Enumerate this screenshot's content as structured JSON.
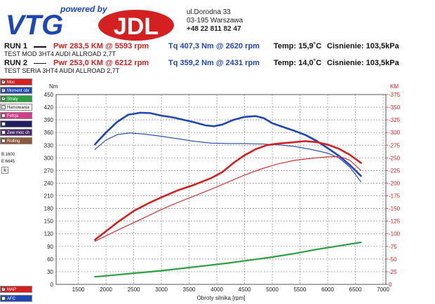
{
  "header": {
    "logo_text_top": "powered by",
    "logo_text_left": "VTG",
    "logo_text_right": "JDL",
    "address_line1": "ul.Dorodna 33",
    "address_line2": "03-195 Warszawa",
    "address_phone": "+48 22 811 82 47"
  },
  "runs": [
    {
      "label": "RUN 1",
      "pwr": "Pwr  283,5 KM @ 5593 rpm",
      "tq": "Tq 407,3 Nm @ 2620 rpm",
      "temp": "Temp: 15,9˚C",
      "pressure": "Cisnienie: 103,5kPa",
      "description": "TEST MOD 3HT4 AUDI ALLROAD 2,7T"
    },
    {
      "label": "RUN 2",
      "pwr": "Pwr  253,0 KM @ 6212 rpm",
      "tq": "Tq 359,2 Nm @ 2431 rpm",
      "temp": "Temp: 14,0˚C",
      "pressure": "Cisnienie: 103,5kPa",
      "description": "TEST SERIA 3HT4 AUDI ALLROAD 2,7T"
    }
  ],
  "sidebar": {
    "items": [
      {
        "label": "Moc",
        "color": "#d42020",
        "checked": true
      },
      {
        "label": "Moment obr",
        "color": "#1e46b4",
        "checked": true
      },
      {
        "label": "Straty",
        "color": "#2aa040",
        "checked": true
      },
      {
        "label": "Hamowania",
        "color": "#ffffff",
        "checked": false
      },
      {
        "label": "Fefcja",
        "color": "#d83a8a",
        "checked": false
      },
      {
        "label": "",
        "color": "#202060",
        "checked": false
      },
      {
        "label": "Zew moc ch",
        "color": "#4a2a6a",
        "checked": false
      },
      {
        "label": "Rolling",
        "color": "#8a5a3a",
        "checked": false
      }
    ],
    "value1": "B:1600",
    "value2": "E:6645",
    "button_k": "k",
    "bottom_items": [
      {
        "label": "MAP",
        "color": "#d42020",
        "checked": true
      },
      {
        "label": "AFC",
        "color": "#1e46b4",
        "checked": false
      }
    ]
  },
  "chart_data": {
    "type": "line",
    "xlabel": "Obroty silnika [rpm]",
    "ylabel_left": "Nm",
    "ylabel_right": "KM",
    "xlim": [
      1100,
      7050
    ],
    "xticks": [
      1500,
      2000,
      2500,
      3000,
      3500,
      4000,
      4500,
      5000,
      5500,
      6000,
      6500,
      7000
    ],
    "ylim_left": [
      0,
      450
    ],
    "yticks_left": [
      0,
      30,
      60,
      90,
      120,
      150,
      180,
      210,
      240,
      270,
      300,
      330,
      360,
      390,
      420,
      450
    ],
    "ylim_right": [
      0,
      375
    ],
    "yticks_right": [
      0,
      25,
      50,
      75,
      100,
      125,
      150,
      175,
      200,
      225,
      250,
      275,
      300,
      325,
      350,
      375
    ],
    "colors": {
      "torque": "#1e46b4",
      "power": "#d42020",
      "losses": "#2aa040",
      "grid": "#8a8a8a"
    },
    "series": [
      {
        "axis": "left",
        "run": 1,
        "kind": "torque",
        "width": 2.6,
        "x": [
          1800,
          2000,
          2200,
          2400,
          2620,
          2800,
          3000,
          3200,
          3400,
          3600,
          3800,
          3950,
          4100,
          4300,
          4500,
          4700,
          4850,
          5000,
          5200,
          5400,
          5600,
          5800,
          6000,
          6200,
          6400,
          6600
        ],
        "y": [
          332,
          360,
          385,
          402,
          407,
          406,
          400,
          396,
          390,
          384,
          377,
          375,
          379,
          390,
          397,
          399,
          394,
          382,
          373,
          364,
          354,
          340,
          323,
          305,
          283,
          257
        ]
      },
      {
        "axis": "left",
        "run": 2,
        "kind": "torque",
        "width": 1.1,
        "x": [
          1800,
          2000,
          2200,
          2431,
          2700,
          3000,
          3300,
          3600,
          3900,
          4200,
          4500,
          4800,
          5100,
          5400,
          5700,
          6000,
          6200,
          6400,
          6600
        ],
        "y": [
          320,
          342,
          355,
          359,
          356,
          351,
          345,
          339,
          335,
          334,
          334,
          333,
          331,
          327,
          320,
          311,
          300,
          278,
          243
        ]
      },
      {
        "axis": "right",
        "run": 1,
        "kind": "power",
        "width": 2.6,
        "x": [
          1800,
          2000,
          2200,
          2500,
          2800,
          3000,
          3300,
          3600,
          3900,
          4100,
          4300,
          4500,
          4700,
          4900,
          5100,
          5300,
          5593,
          5800,
          6000,
          6200,
          6400,
          6600
        ],
        "y": [
          88,
          105,
          122,
          145,
          162,
          172,
          186,
          197,
          210,
          222,
          240,
          255,
          267,
          275,
          278,
          280,
          283,
          281,
          276,
          268,
          256,
          240
        ]
      },
      {
        "axis": "right",
        "run": 2,
        "kind": "power",
        "width": 1.1,
        "x": [
          1800,
          2000,
          2300,
          2600,
          3000,
          3300,
          3600,
          3900,
          4200,
          4500,
          4800,
          5100,
          5400,
          5700,
          6000,
          6212,
          6400,
          6600
        ],
        "y": [
          85,
          96,
          112,
          127,
          148,
          162,
          175,
          188,
          202,
          216,
          228,
          238,
          245,
          249,
          252,
          253,
          245,
          225
        ]
      },
      {
        "axis": "right",
        "run": 1,
        "kind": "losses",
        "width": 2.2,
        "x": [
          1800,
          2200,
          2600,
          3000,
          3400,
          3800,
          4200,
          4600,
          5000,
          5400,
          5800,
          6200,
          6600
        ],
        "y": [
          15,
          19,
          23,
          27,
          32,
          37,
          42,
          48,
          54,
          61,
          69,
          76,
          83
        ]
      }
    ]
  }
}
